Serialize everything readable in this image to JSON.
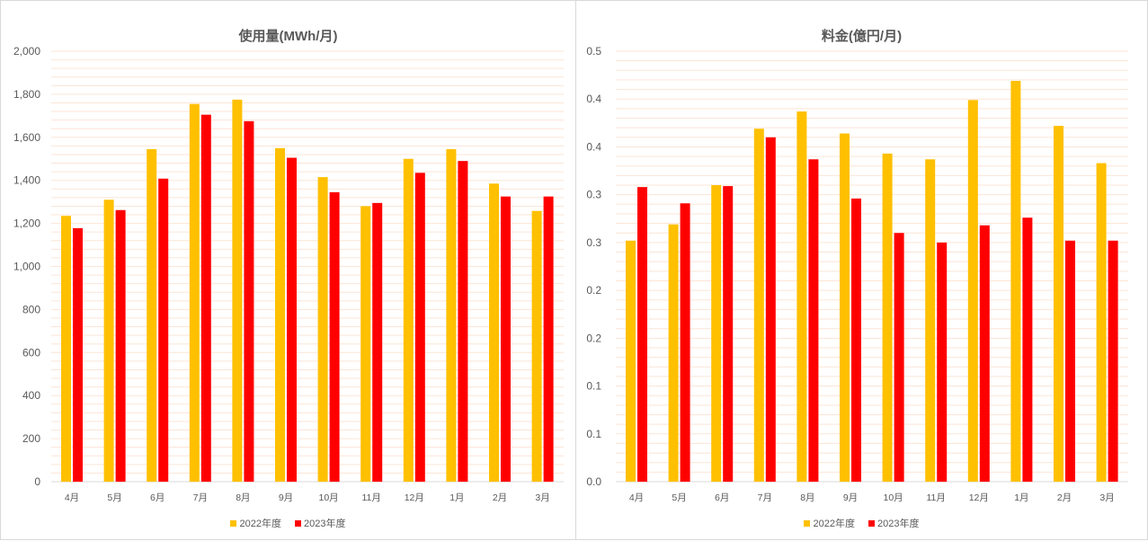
{
  "chart_data": [
    {
      "type": "bar",
      "title": "使用量(MWh/月)",
      "categories": [
        "4月",
        "5月",
        "6月",
        "7月",
        "8月",
        "9月",
        "10月",
        "11月",
        "12月",
        "1月",
        "2月",
        "3月"
      ],
      "series": [
        {
          "name": "2022年度",
          "color": "#ffc000",
          "values": [
            1235,
            1310,
            1545,
            1755,
            1775,
            1550,
            1415,
            1280,
            1500,
            1545,
            1385,
            1258
          ]
        },
        {
          "name": "2023年度",
          "color": "#ff0000",
          "values": [
            1178,
            1262,
            1408,
            1705,
            1675,
            1505,
            1345,
            1295,
            1435,
            1490,
            1325,
            1325
          ]
        }
      ],
      "yticks": [
        "0",
        "200",
        "400",
        "600",
        "800",
        "1,000",
        "1,200",
        "1,400",
        "1,600",
        "1,800",
        "2,000"
      ],
      "ylim": [
        0,
        2000
      ],
      "grid": true,
      "legend": "bottom"
    },
    {
      "type": "bar",
      "title": "料金(億円/月)",
      "categories": [
        "4月",
        "5月",
        "6月",
        "7月",
        "8月",
        "9月",
        "10月",
        "11月",
        "12月",
        "1月",
        "2月",
        "3月"
      ],
      "series": [
        {
          "name": "2022年度",
          "color": "#ffc000",
          "values": [
            0.252,
            0.269,
            0.31,
            0.369,
            0.387,
            0.364,
            0.343,
            0.337,
            0.399,
            0.419,
            0.372,
            0.333
          ]
        },
        {
          "name": "2023年度",
          "color": "#ff0000",
          "values": [
            0.308,
            0.291,
            0.309,
            0.36,
            0.337,
            0.296,
            0.26,
            0.25,
            0.268,
            0.276,
            0.252,
            0.252
          ]
        }
      ],
      "yticks": [
        "0.0",
        "0.1",
        "0.1",
        "0.2",
        "0.2",
        "0.3",
        "0.3",
        "0.4",
        "0.4",
        "0.5"
      ],
      "ylim": [
        0,
        0.45
      ],
      "grid": true,
      "legend": "bottom"
    }
  ]
}
